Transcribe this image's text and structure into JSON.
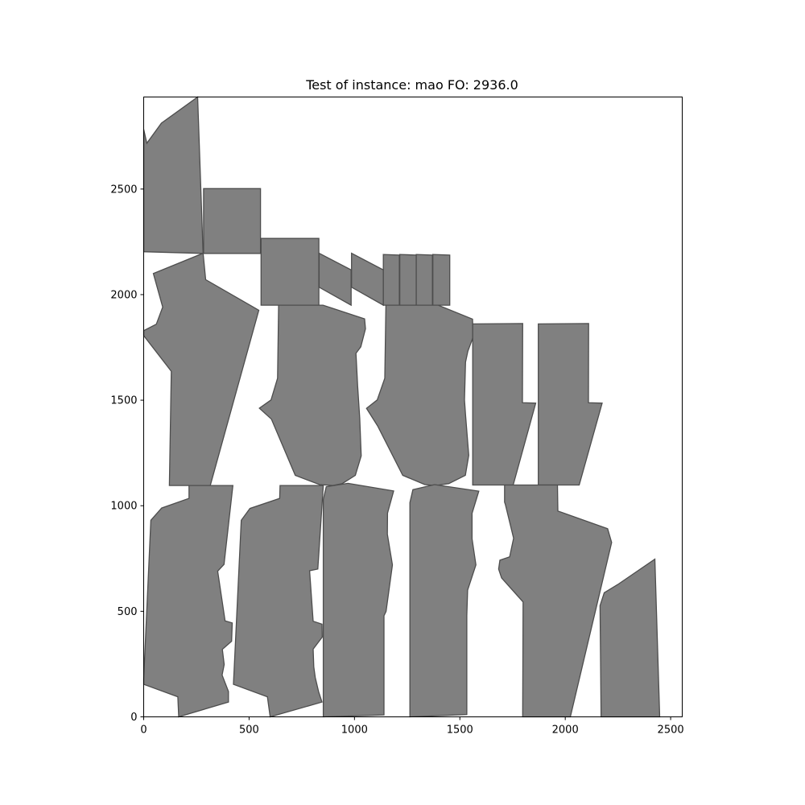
{
  "chart_data": {
    "type": "scatter",
    "title": "Test of instance: mao  FO: 2936.0",
    "xlabel": "",
    "ylabel": "",
    "xlim": [
      0,
      2555
    ],
    "ylim": [
      0,
      2936
    ],
    "xticks": [
      0,
      500,
      1000,
      1500,
      2000,
      2500
    ],
    "yticks": [
      0,
      500,
      1000,
      1500,
      2000,
      2500
    ],
    "x_tick_labels": [
      "0",
      "500",
      "1000",
      "1500",
      "2000",
      "2500"
    ],
    "y_tick_labels": [
      "0",
      "500",
      "1000",
      "1500",
      "2000",
      "2500"
    ],
    "grid": false,
    "fill_color": "#808080",
    "edge_color": "#4d4d4d",
    "polygons": [
      [
        [
          0,
          2203
        ],
        [
          0,
          2783
        ],
        [
          15,
          2717
        ],
        [
          84,
          2812
        ],
        [
          256,
          2936
        ],
        [
          282,
          2195
        ]
      ],
      [
        [
          284,
          2502
        ],
        [
          554,
          2502
        ],
        [
          554,
          2195
        ],
        [
          284,
          2195
        ]
      ],
      [
        [
          557,
          2266
        ],
        [
          831,
          2266
        ],
        [
          831,
          1950
        ],
        [
          557,
          1950
        ]
      ],
      [
        [
          832,
          2196
        ],
        [
          984,
          2117
        ],
        [
          984,
          1950
        ],
        [
          832,
          2035
        ]
      ],
      [
        [
          986,
          2196
        ],
        [
          1137,
          2117
        ],
        [
          1137,
          1950
        ],
        [
          986,
          2035
        ]
      ],
      [
        [
          1137,
          2190
        ],
        [
          1213,
          2187
        ],
        [
          1213,
          1950
        ],
        [
          1137,
          1950
        ]
      ],
      [
        [
          1215,
          2190
        ],
        [
          1293,
          2187
        ],
        [
          1293,
          1950
        ],
        [
          1215,
          1950
        ]
      ],
      [
        [
          1293,
          2190
        ],
        [
          1370,
          2187
        ],
        [
          1370,
          1950
        ],
        [
          1293,
          1950
        ]
      ],
      [
        [
          1372,
          2190
        ],
        [
          1452,
          2187
        ],
        [
          1452,
          1950
        ],
        [
          1372,
          1950
        ]
      ],
      [
        [
          282,
          2196
        ],
        [
          294,
          2071
        ],
        [
          546,
          1926
        ],
        [
          316,
          1096
        ],
        [
          122,
          1096
        ],
        [
          131,
          1637
        ],
        [
          0,
          1806
        ],
        [
          0,
          1829
        ],
        [
          60,
          1860
        ],
        [
          90,
          1941
        ],
        [
          46,
          2100
        ]
      ],
      [
        [
          640,
          1950
        ],
        [
          851,
          1950
        ],
        [
          1048,
          1885
        ],
        [
          1052,
          1838
        ],
        [
          1030,
          1753
        ],
        [
          1007,
          1722
        ],
        [
          1015,
          1566
        ],
        [
          1025,
          1413
        ],
        [
          1032,
          1236
        ],
        [
          1004,
          1144
        ],
        [
          942,
          1105
        ],
        [
          897,
          1096
        ],
        [
          835,
          1100
        ],
        [
          719,
          1144
        ],
        [
          606,
          1410
        ],
        [
          549,
          1462
        ],
        [
          604,
          1501
        ],
        [
          635,
          1604
        ]
      ],
      [
        [
          1149,
          1950
        ],
        [
          1397,
          1950
        ],
        [
          1560,
          1884
        ],
        [
          1563,
          1800
        ],
        [
          1538,
          1732
        ],
        [
          1527,
          1680
        ],
        [
          1522,
          1501
        ],
        [
          1527,
          1431
        ],
        [
          1542,
          1239
        ],
        [
          1526,
          1144
        ],
        [
          1448,
          1105
        ],
        [
          1385,
          1096
        ],
        [
          1334,
          1100
        ],
        [
          1229,
          1144
        ],
        [
          1110,
          1378
        ],
        [
          1057,
          1461
        ],
        [
          1108,
          1501
        ],
        [
          1144,
          1604
        ]
      ],
      [
        [
          1561,
          1861
        ],
        [
          1798,
          1863
        ],
        [
          1797,
          1488
        ],
        [
          1860,
          1486
        ],
        [
          1753,
          1098
        ],
        [
          1561,
          1098
        ]
      ],
      [
        [
          1872,
          1861
        ],
        [
          2111,
          1863
        ],
        [
          2110,
          1488
        ],
        [
          2175,
          1486
        ],
        [
          2066,
          1098
        ],
        [
          1872,
          1098
        ]
      ],
      [
        [
          215,
          1096
        ],
        [
          423,
          1096
        ],
        [
          381,
          722
        ],
        [
          351,
          690
        ],
        [
          386,
          455
        ],
        [
          420,
          445
        ],
        [
          417,
          358
        ],
        [
          373,
          320
        ],
        [
          382,
          248
        ],
        [
          372,
          198
        ],
        [
          402,
          120
        ],
        [
          402,
          70
        ],
        [
          166,
          0
        ],
        [
          162,
          95
        ],
        [
          0,
          154
        ],
        [
          0,
          180
        ],
        [
          34,
          931
        ],
        [
          85,
          989
        ],
        [
          215,
          1035
        ]
      ],
      [
        [
          647,
          1096
        ],
        [
          852,
          1096
        ],
        [
          826,
          700
        ],
        [
          787,
          692
        ],
        [
          804,
          453
        ],
        [
          846,
          439
        ],
        [
          847,
          378
        ],
        [
          804,
          321
        ],
        [
          807,
          237
        ],
        [
          814,
          187
        ],
        [
          830,
          119
        ],
        [
          846,
          70
        ],
        [
          600,
          0
        ],
        [
          587,
          95
        ],
        [
          426,
          154
        ],
        [
          463,
          931
        ],
        [
          504,
          987
        ],
        [
          645,
          1035
        ]
      ],
      [
        [
          866,
          1090
        ],
        [
          969,
          1106
        ],
        [
          1186,
          1070
        ],
        [
          1157,
          965
        ],
        [
          1156,
          865
        ],
        [
          1180,
          720
        ],
        [
          1150,
          500
        ],
        [
          1140,
          479
        ],
        [
          1140,
          9
        ],
        [
          852,
          0
        ],
        [
          852,
          1030
        ]
      ],
      [
        [
          1277,
          1076
        ],
        [
          1380,
          1100
        ],
        [
          1590,
          1069
        ],
        [
          1558,
          964
        ],
        [
          1558,
          844
        ],
        [
          1576,
          720
        ],
        [
          1537,
          600
        ],
        [
          1533,
          480
        ],
        [
          1533,
          11
        ],
        [
          1263,
          0
        ],
        [
          1263,
          1015
        ]
      ],
      [
        [
          1712,
          1098
        ],
        [
          1963,
          1098
        ],
        [
          1965,
          975
        ],
        [
          2201,
          891
        ],
        [
          2220,
          826
        ],
        [
          2024,
          0
        ],
        [
          1798,
          0
        ],
        [
          1800,
          544
        ],
        [
          1698,
          658
        ],
        [
          1684,
          700
        ],
        [
          1690,
          742
        ],
        [
          1736,
          758
        ],
        [
          1755,
          846
        ],
        [
          1716,
          1006
        ],
        [
          1712,
          1017
        ]
      ],
      [
        [
          2185,
          588
        ],
        [
          2249,
          627
        ],
        [
          2425,
          747
        ],
        [
          2448,
          0
        ],
        [
          2170,
          0
        ],
        [
          2165,
          527
        ]
      ]
    ]
  }
}
